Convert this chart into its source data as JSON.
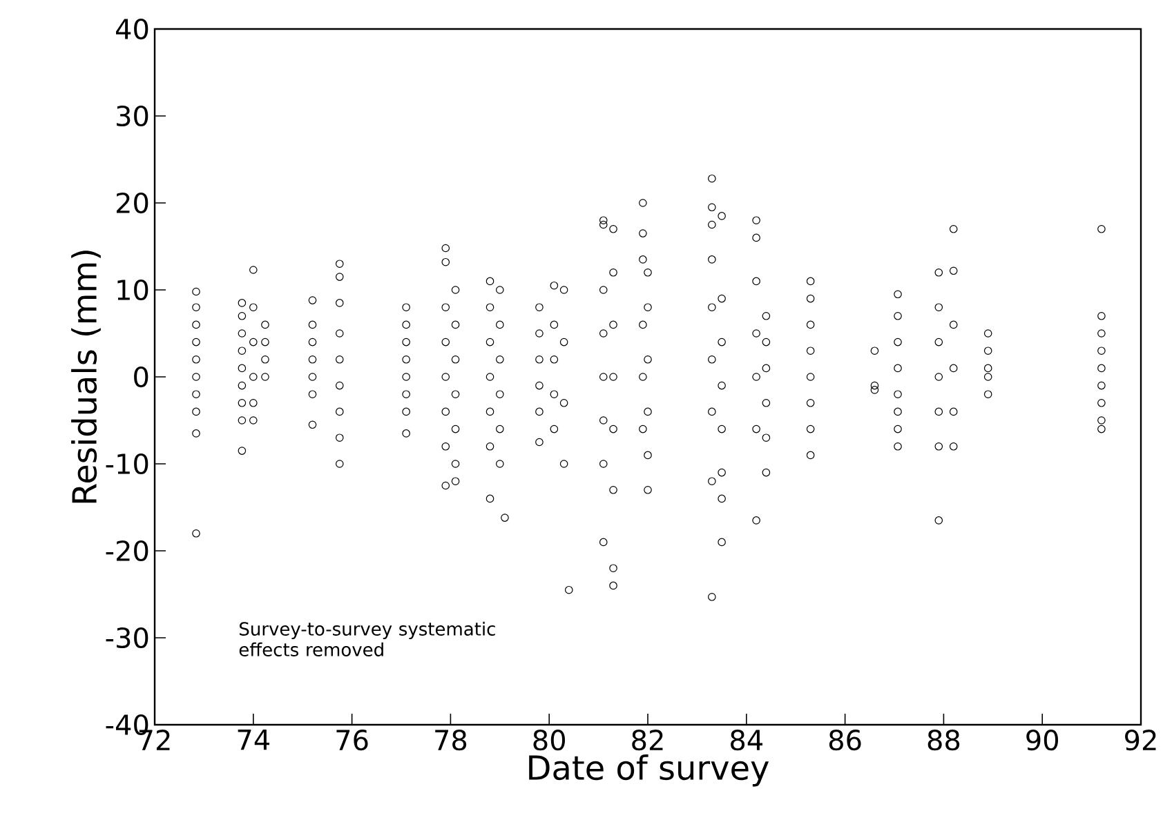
{
  "chart_data": {
    "type": "scatter",
    "xlabel": "Date of survey",
    "ylabel": "Residuals (mm)",
    "xlim": [
      72,
      92
    ],
    "ylim": [
      -40,
      40
    ],
    "xticks": [
      72,
      74,
      76,
      78,
      80,
      82,
      84,
      86,
      88,
      90,
      92
    ],
    "yticks": [
      -40,
      -30,
      -20,
      -10,
      0,
      10,
      20,
      30,
      40
    ],
    "marker": "circle",
    "grid": false,
    "annotations": [
      "Survey-to-survey systematic effects removed"
    ],
    "series": [
      {
        "color": "#000000",
        "x": [
          72.84,
          72.84,
          72.84,
          72.84,
          72.84,
          72.84,
          72.84,
          72.84,
          72.84,
          72.84,
          73.77,
          73.77,
          73.77,
          73.77,
          73.77,
          73.77,
          73.77,
          73.77,
          73.77,
          74.0,
          74.0,
          74.0,
          74.0,
          74.0,
          74.0,
          74.24,
          74.24,
          74.24,
          74.24,
          75.2,
          75.2,
          75.2,
          75.2,
          75.2,
          75.2,
          75.2,
          75.75,
          75.75,
          75.75,
          75.75,
          75.75,
          75.75,
          75.75,
          75.75,
          75.75,
          77.1,
          77.1,
          77.1,
          77.1,
          77.1,
          77.1,
          77.1,
          77.1,
          77.9,
          77.9,
          77.9,
          77.9,
          77.9,
          77.9,
          77.9,
          77.9,
          78.1,
          78.1,
          78.1,
          78.1,
          78.1,
          78.1,
          78.1,
          78.8,
          78.8,
          78.8,
          78.8,
          78.8,
          78.8,
          78.8,
          79.0,
          79.0,
          79.0,
          79.0,
          79.0,
          79.0,
          79.1,
          79.8,
          79.8,
          79.8,
          79.8,
          79.8,
          79.8,
          80.1,
          80.1,
          80.1,
          80.1,
          80.1,
          80.3,
          80.3,
          80.3,
          80.3,
          80.4,
          81.1,
          81.1,
          81.1,
          81.1,
          81.1,
          81.1,
          81.1,
          81.1,
          81.3,
          81.3,
          81.3,
          81.3,
          81.3,
          81.3,
          81.3,
          81.3,
          81.9,
          81.9,
          81.9,
          81.9,
          81.9,
          81.9,
          82.0,
          82.0,
          82.0,
          82.0,
          82.0,
          82.0,
          83.3,
          83.3,
          83.3,
          83.3,
          83.3,
          83.3,
          83.3,
          83.3,
          83.3,
          83.5,
          83.5,
          83.5,
          83.5,
          83.5,
          83.5,
          83.5,
          83.5,
          84.2,
          84.2,
          84.2,
          84.2,
          84.2,
          84.2,
          84.2,
          84.4,
          84.4,
          84.4,
          84.4,
          84.4,
          84.4,
          85.3,
          85.3,
          85.3,
          85.3,
          85.3,
          85.3,
          85.3,
          85.3,
          86.6,
          86.6,
          86.6,
          87.07,
          87.07,
          87.07,
          87.07,
          87.07,
          87.07,
          87.07,
          87.07,
          87.9,
          87.9,
          87.9,
          87.9,
          87.9,
          87.9,
          87.9,
          88.2,
          88.2,
          88.2,
          88.2,
          88.2,
          88.2,
          88.9,
          88.9,
          88.9,
          88.9,
          88.9,
          91.2,
          91.2,
          91.2,
          91.2,
          91.2,
          91.2,
          91.2,
          91.2,
          91.2
        ],
        "values": [
          9.8,
          8,
          6,
          4,
          2,
          0,
          -2,
          -4,
          -6.5,
          -18,
          8.5,
          7,
          5,
          3,
          1,
          -1,
          -3,
          -5,
          -8.5,
          12.3,
          8,
          4,
          0,
          -3,
          -5,
          6,
          4,
          2,
          0,
          8.8,
          6,
          4,
          2,
          0,
          -2,
          -5.5,
          13,
          11.5,
          8.5,
          5,
          2,
          -1,
          -4,
          -7,
          -10,
          8,
          6,
          4,
          2,
          0,
          -2,
          -4,
          -6.5,
          14.8,
          13.2,
          8,
          4,
          0,
          -4,
          -8,
          -12.5,
          10,
          6,
          2,
          -2,
          -6,
          -10,
          -12,
          11,
          8,
          4,
          0,
          -4,
          -8,
          -14,
          10,
          6,
          2,
          -2,
          -6,
          -10,
          -16.2,
          8,
          5,
          2,
          -1,
          -4,
          -7.5,
          10.5,
          6,
          2,
          -2,
          -6,
          10,
          4,
          -3,
          -10,
          -24.5,
          18,
          17.5,
          10,
          5,
          0,
          -5,
          -10,
          -19,
          17,
          12,
          6,
          0,
          -6,
          -13,
          -22,
          -24,
          20,
          16.5,
          13.5,
          6,
          0,
          -6,
          12,
          8,
          2,
          -4,
          -9,
          -13,
          22.8,
          19.5,
          17.5,
          13.5,
          8,
          2,
          -4,
          -12,
          -25.3,
          18.5,
          9,
          4,
          -1,
          -6,
          -11,
          -14,
          -19,
          18,
          16,
          11,
          5,
          0,
          -6,
          -16.5,
          7,
          4,
          1,
          -3,
          -7,
          -11,
          11,
          9,
          6,
          3,
          0,
          -3,
          -6,
          -9,
          3,
          -1,
          -1.5,
          9.5,
          7,
          4,
          1,
          -2,
          -4,
          -6,
          -8,
          12,
          8,
          4,
          0,
          -4,
          -8,
          -16.5,
          17,
          12.2,
          6,
          1,
          -4,
          -8,
          5,
          3,
          1,
          0,
          -2,
          17,
          7,
          5,
          3,
          1,
          -1,
          -3,
          -5,
          -6
        ]
      }
    ]
  }
}
